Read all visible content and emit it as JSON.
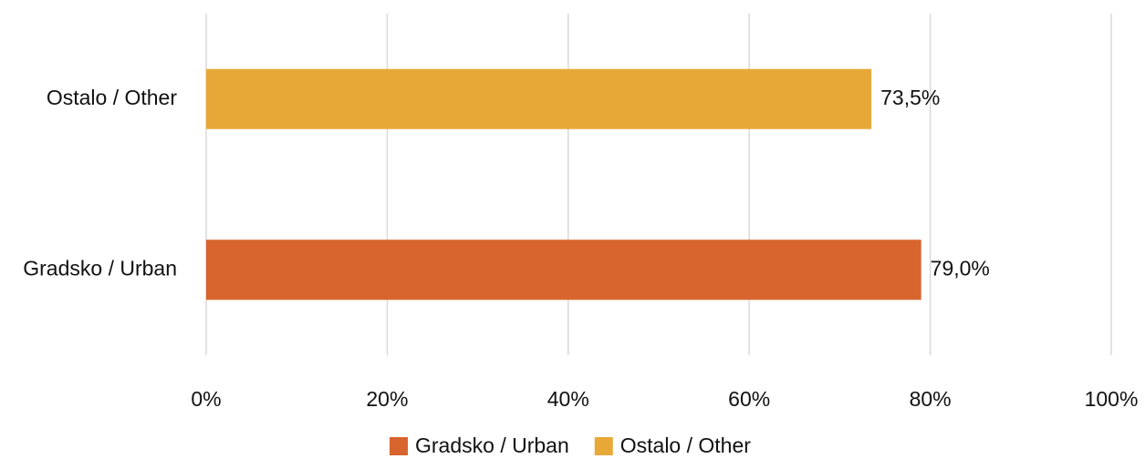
{
  "chart_data": {
    "type": "hbar",
    "categories": [
      "Gradsko / Urban",
      "Ostalo / Other"
    ],
    "series": [
      {
        "name": "Gradsko / Urban",
        "color": "#d8642e",
        "values": [
          79.0,
          null
        ],
        "value_labels": [
          "79,0%",
          null
        ]
      },
      {
        "name": "Ostalo / Other",
        "color": "#e8a838",
        "values": [
          null,
          73.5
        ],
        "value_labels": [
          null,
          "73,5%"
        ]
      }
    ],
    "xlim": [
      0,
      100
    ],
    "xticks": [
      {
        "value": 0,
        "label": "0%"
      },
      {
        "value": 20,
        "label": "20%"
      },
      {
        "value": 40,
        "label": "40%"
      },
      {
        "value": 60,
        "label": "60%"
      },
      {
        "value": 80,
        "label": "80%"
      },
      {
        "value": 100,
        "label": "100%"
      }
    ],
    "grid": true,
    "legend": "bottom"
  }
}
